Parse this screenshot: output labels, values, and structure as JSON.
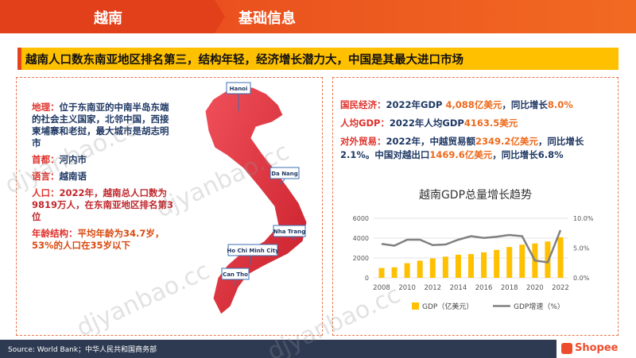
{
  "header": {
    "country": "越南",
    "section": "基础信息"
  },
  "headline": "越南人口数东南亚地区排名第三，结构年轻，经济增长潜力大，中国是其最大进口市场",
  "profile": [
    {
      "label": "地理：",
      "text": "位于东南亚的中南半岛东端的社会主义国家，北邻中国，西接柬埔寨和老挝，最大城市是胡志明市",
      "color": "#1f3864"
    },
    {
      "label": "首都：",
      "text": "河内市",
      "color": "#1f3864"
    },
    {
      "label": "语言：",
      "text": "越南语",
      "color": "#1f3864"
    },
    {
      "label": "人口：",
      "text": "2022年，越南总人口数为9819万人，在东南亚地区排名第3位",
      "color": "#c0282d"
    },
    {
      "label": "年龄结构：",
      "text": "平均年龄为34.7岁，53%的人口在35岁以下",
      "color": "#d94a10"
    }
  ],
  "map_labels": [
    "Hanoi",
    "Da Nang",
    "Nha Trang",
    "Ho Chi Minh City",
    "Can Tho"
  ],
  "facts": [
    {
      "label": "国民经济：",
      "parts": [
        "2022年GDP ",
        "4,088亿美元",
        "，同比增长",
        "8.0%"
      ]
    },
    {
      "label": "人均GDP：",
      "parts": [
        "2022年人均GDP",
        "4163.5美元"
      ]
    },
    {
      "label": "对外贸易：",
      "parts": [
        "2022年，中越贸易额",
        "2349.2亿美元",
        "，同比增长2.1%。中国对越出口",
        "1469.6亿美元",
        "，同比增长6.8%"
      ]
    }
  ],
  "chart_data": {
    "type": "combo",
    "title": "越南GDP总量增长趋势",
    "categories": [
      "2008",
      null,
      "2010",
      null,
      "2012",
      null,
      "2014",
      null,
      "2016",
      null,
      "2018",
      null,
      "2020",
      null,
      "2022"
    ],
    "series": [
      {
        "name": "GDP（亿美元）",
        "type": "bar",
        "color": "#ffc000",
        "values": [
          991,
          1060,
          1474,
          1728,
          1955,
          2135,
          2331,
          2393,
          2570,
          2818,
          3102,
          3343,
          3466,
          3662,
          4088
        ]
      },
      {
        "name": "GDP增速（%）",
        "type": "line",
        "axis": "y2",
        "color": "#808080",
        "values": [
          5.7,
          5.4,
          6.4,
          6.4,
          5.5,
          5.6,
          6.4,
          7.0,
          6.7,
          6.9,
          7.2,
          7.0,
          2.9,
          2.6,
          8.0
        ]
      }
    ],
    "ylim": [
      0,
      6000
    ],
    "yticks": [
      0,
      2000,
      4000,
      6000
    ],
    "y2lim": [
      0,
      10
    ],
    "y2ticks": [
      {
        "value": 0,
        "label": "0.0%"
      },
      {
        "value": 5,
        "label": "5.0%"
      },
      {
        "value": 10,
        "label": "10.0%"
      }
    ],
    "grid": true
  },
  "source": "Source: World Bank；中华人民共和国商务部",
  "logo": "Shopee",
  "watermark": "djyanbao.cc"
}
